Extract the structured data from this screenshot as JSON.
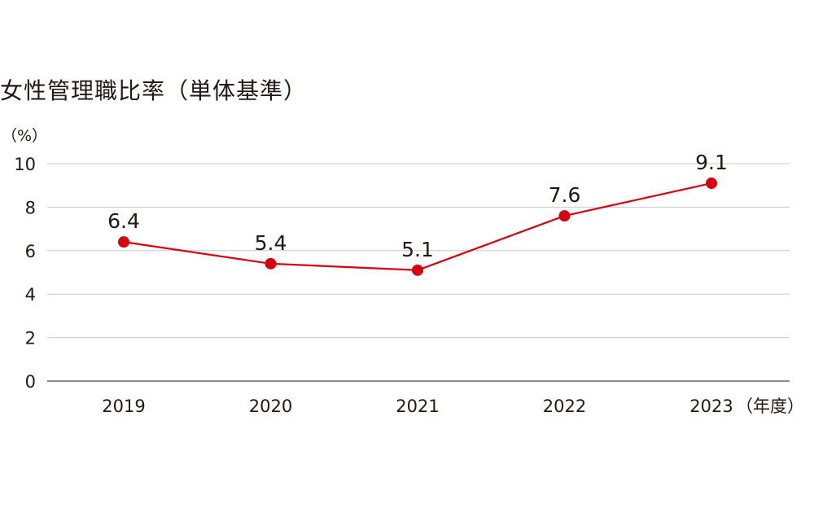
{
  "chart_data": {
    "type": "line",
    "title": "女性管理職比率（単体基準）",
    "ylabel": "（%）",
    "xlabel": "（年度）",
    "categories": [
      "2019",
      "2020",
      "2021",
      "2022",
      "2023"
    ],
    "series": [
      {
        "values": [
          6.4,
          5.4,
          5.1,
          7.6,
          9.1
        ],
        "labels": [
          "6.4",
          "5.4",
          "5.1",
          "7.6",
          "9.1"
        ]
      }
    ],
    "ylim": [
      0,
      10
    ],
    "yticks": [
      "0",
      "2",
      "4",
      "6",
      "8",
      "10"
    ],
    "grid": true,
    "colors": {
      "series": "#d7000f",
      "grid": "#c8c8c8",
      "axis": "#8c8c8c",
      "text": "#231815"
    }
  }
}
